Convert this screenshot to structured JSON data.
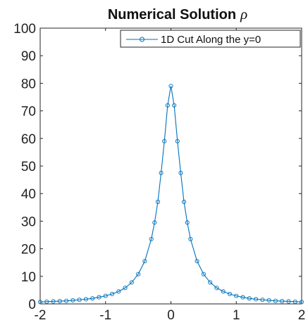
{
  "chart_data": {
    "type": "line",
    "title": "Numerical Solution",
    "title_symbol": "ρ",
    "xlabel": "",
    "ylabel": "",
    "xlim": [
      -2,
      2
    ],
    "ylim": [
      0,
      100
    ],
    "xticks": [
      "-2",
      "-1",
      "0",
      "1",
      "2"
    ],
    "yticks": [
      "0",
      "10",
      "20",
      "30",
      "40",
      "50",
      "60",
      "70",
      "80",
      "90",
      "100"
    ],
    "grid": false,
    "legend_position": "top-right",
    "series": [
      {
        "name": "1D Cut Along the y=0",
        "color": "#0072BD",
        "marker": "circle",
        "x": [
          -2.0,
          -1.9,
          -1.8,
          -1.7,
          -1.6,
          -1.5,
          -1.4,
          -1.3,
          -1.2,
          -1.1,
          -1.0,
          -0.9,
          -0.8,
          -0.7,
          -0.6,
          -0.5,
          -0.4,
          -0.3,
          -0.25,
          -0.2,
          -0.15,
          -0.1,
          -0.05,
          0.0,
          0.05,
          0.1,
          0.15,
          0.2,
          0.25,
          0.3,
          0.4,
          0.5,
          0.6,
          0.7,
          0.8,
          0.9,
          1.0,
          1.1,
          1.2,
          1.3,
          1.4,
          1.5,
          1.6,
          1.7,
          1.8,
          1.9,
          2.0
        ],
        "y": [
          0.7,
          0.8,
          0.9,
          1.0,
          1.1,
          1.3,
          1.5,
          1.7,
          2.0,
          2.4,
          2.9,
          3.6,
          4.5,
          5.8,
          7.8,
          10.8,
          15.5,
          23.5,
          29.5,
          37.0,
          47.5,
          59.0,
          72.0,
          79.0,
          72.0,
          59.0,
          47.5,
          37.0,
          29.5,
          23.5,
          15.5,
          10.8,
          7.8,
          5.8,
          4.5,
          3.6,
          2.9,
          2.4,
          2.0,
          1.7,
          1.5,
          1.3,
          1.1,
          1.0,
          0.9,
          0.8,
          0.7
        ]
      }
    ]
  }
}
